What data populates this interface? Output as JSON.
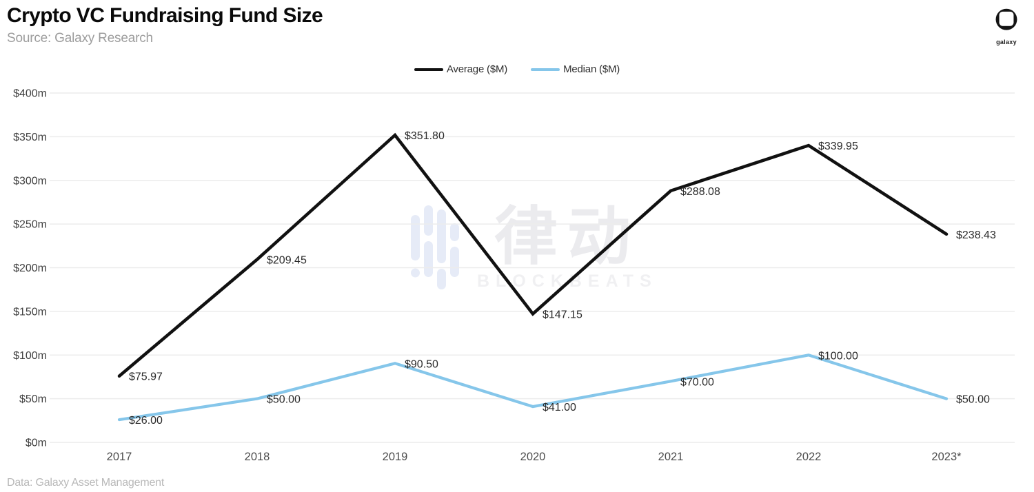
{
  "header": {
    "title": "Crypto VC Fundraising Fund Size",
    "source": "Source: Galaxy Research"
  },
  "logo": {
    "label": "galaxy"
  },
  "watermark": {
    "cn": "律动",
    "en": "BLOCKBEATS"
  },
  "footer": {
    "credit": "Data: Galaxy Asset Management"
  },
  "chart_data": {
    "type": "line",
    "title": "Crypto VC Fundraising Fund Size",
    "categories": [
      "2017",
      "2018",
      "2019",
      "2020",
      "2021",
      "2022",
      "2023*"
    ],
    "series": [
      {
        "name": "Average ($M)",
        "color": "#111111",
        "values": [
          75.97,
          209.45,
          351.8,
          147.15,
          288.08,
          339.95,
          238.43
        ],
        "labels": [
          "$75.97",
          "$209.45",
          "$351.80",
          "$147.15",
          "$288.08",
          "$339.95",
          "$238.43"
        ]
      },
      {
        "name": "Median ($M)",
        "color": "#85c6ea",
        "values": [
          26.0,
          50.0,
          90.5,
          41.0,
          70.0,
          100.0,
          50.0
        ],
        "labels": [
          "$26.00",
          "$50.00",
          "$90.50",
          "$41.00",
          "$70.00",
          "$100.00",
          "$50.00"
        ]
      }
    ],
    "xlabel": "",
    "ylabel": "",
    "ylim": [
      0,
      400
    ],
    "ytick_step": 50,
    "ytick_labels": [
      "$0m",
      "$50m",
      "$100m",
      "$150m",
      "$200m",
      "$250m",
      "$300m",
      "$350m",
      "$400m"
    ],
    "grid": true,
    "legend_position": "top-center",
    "grid_color": "#ececec",
    "tick_color": "#414141",
    "data_label_color": "#2b2b2b"
  }
}
